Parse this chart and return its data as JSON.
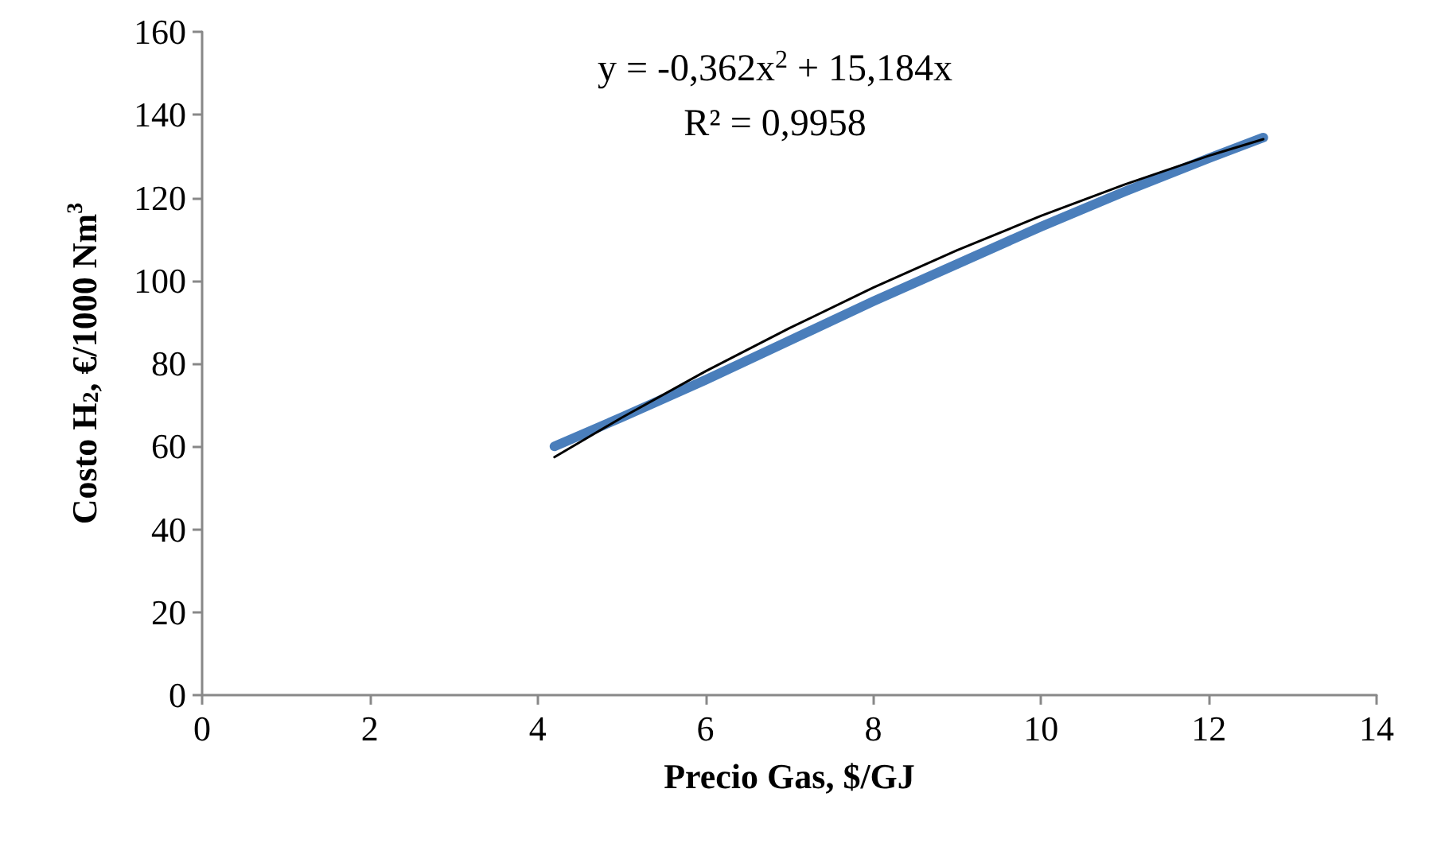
{
  "chart_data": {
    "type": "line",
    "xlabel": "Precio Gas, $/GJ",
    "ylabel": "Costo H$_{2}$, €/1000 Nm$^{3}$",
    "annotations": [
      "y = -0,362x$^{2}$ + 15,184x",
      "R² = 0,9958"
    ],
    "xlim": [
      0,
      14
    ],
    "xticks": [
      0,
      2,
      4,
      6,
      8,
      10,
      12,
      14
    ],
    "ylim": [
      0,
      160
    ],
    "yticks": [
      0,
      20,
      40,
      60,
      80,
      100,
      120,
      140,
      160
    ],
    "grid": false,
    "marker": "none",
    "line_style": "solid",
    "series": [
      {
        "color": "#4a7ebb",
        "x": [
          4.2,
          5,
          6,
          7,
          8,
          9,
          10,
          11,
          12,
          12.65
        ],
        "values": [
          60,
          67,
          76,
          85.5,
          95,
          104,
          113,
          121.5,
          129.5,
          134.5
        ]
      },
      {
        "color": "#000000",
        "x": [
          4.2,
          5,
          6,
          7,
          8,
          9,
          10,
          11,
          12,
          12.65
        ],
        "values": [
          57.4,
          66.9,
          78.1,
          88.5,
          98.3,
          107.3,
          115.6,
          123.2,
          130.1,
          134.1
        ]
      }
    ]
  }
}
